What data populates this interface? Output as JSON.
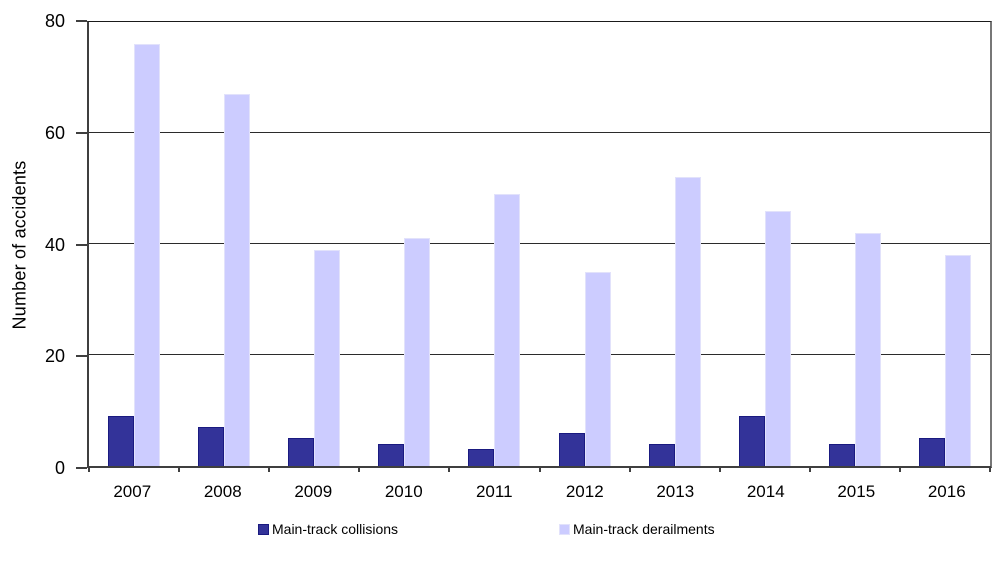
{
  "chart_data": {
    "type": "bar",
    "title": "",
    "xlabel": "",
    "ylabel": "Number of accidents",
    "ylim": [
      0,
      80
    ],
    "yticks": [
      0,
      20,
      40,
      60,
      80
    ],
    "grid": true,
    "legend_position": "bottom",
    "categories": [
      "2007",
      "2008",
      "2009",
      "2010",
      "2011",
      "2012",
      "2013",
      "2014",
      "2015",
      "2016"
    ],
    "series": [
      {
        "name": "Main-track collisions",
        "color": "#333399",
        "border_color": "#1a1a80",
        "values": [
          9,
          7,
          5,
          4,
          3,
          6,
          4,
          9,
          4,
          5
        ]
      },
      {
        "name": "Main-track derailments",
        "color": "#ccccff",
        "border_color": "#e2e2fb",
        "values": [
          76,
          67,
          39,
          41,
          49,
          35,
          52,
          46,
          42,
          38
        ]
      }
    ],
    "colors": {
      "axis": "#3f3f3f",
      "grid": "#2b2b2b",
      "background": "#ffffff",
      "text": "#000000"
    }
  }
}
